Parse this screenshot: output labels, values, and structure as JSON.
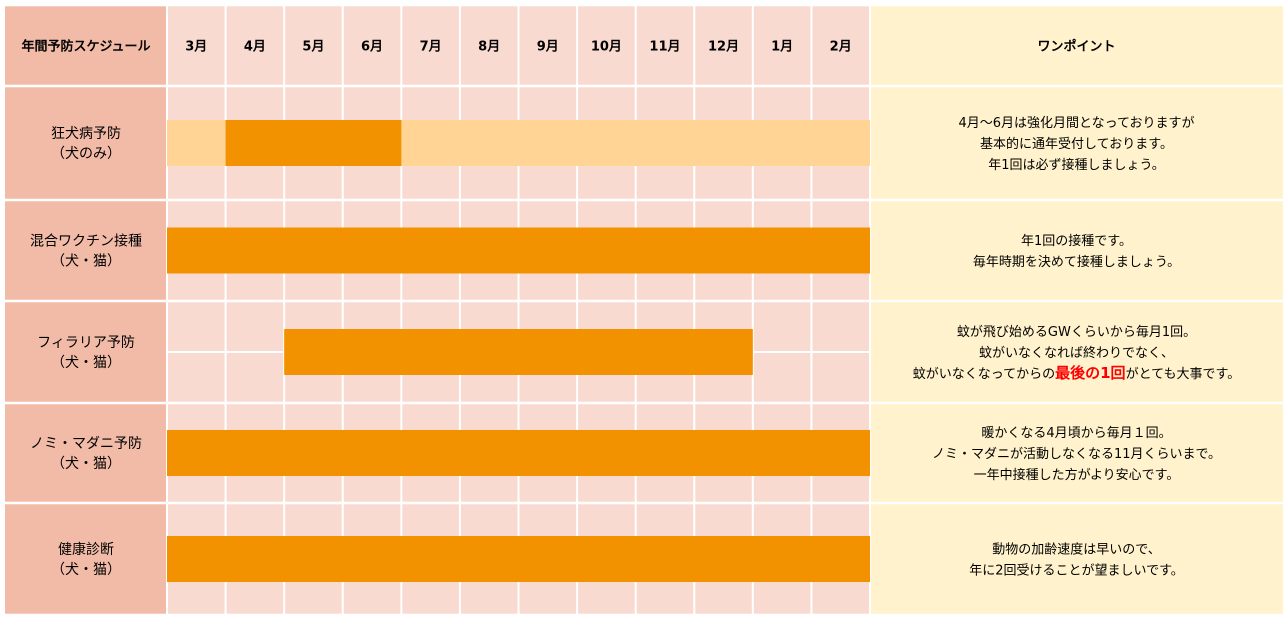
{
  "colors": {
    "label_bg": "#f2bba8",
    "grid_bg": "#f8dad0",
    "grid_line": "#ffffff",
    "note_bg": "#fff2cc",
    "bar_main": "#f39200",
    "bar_light": "#ffd495",
    "emphasis": "#ff0000"
  },
  "header": {
    "schedule_label": "年間予防スケジュール",
    "onepoint_label": "ワンポイント"
  },
  "chart_data": {
    "type": "gantt",
    "title": "年間予防スケジュール",
    "months": [
      "3月",
      "4月",
      "5月",
      "6月",
      "7月",
      "8月",
      "9月",
      "10月",
      "11月",
      "12月",
      "1月",
      "2月"
    ],
    "rows": [
      {
        "label": [
          "狂犬病予防",
          "（犬のみ）"
        ],
        "bars": [
          {
            "start_month": "3月",
            "end_month": "2月",
            "level": "light"
          },
          {
            "start_month": "4月",
            "end_month": "6月",
            "level": "main"
          }
        ],
        "note": [
          [
            {
              "text": "4月～6月は強化月間となっておりますが"
            }
          ],
          [
            {
              "text": "基本的に通年受付しております。"
            }
          ],
          [
            {
              "text": "年1回は必ず接種しましょう。"
            }
          ]
        ]
      },
      {
        "label": [
          "混合ワクチン接種",
          "（犬・猫）"
        ],
        "bars": [
          {
            "start_month": "3月",
            "end_month": "2月",
            "level": "main"
          }
        ],
        "note": [
          [
            {
              "text": "年1回の接種です。"
            }
          ],
          [
            {
              "text": "毎年時期を決めて接種しましょう。"
            }
          ]
        ]
      },
      {
        "label": [
          "フィラリア予防",
          "（犬・猫）"
        ],
        "bars": [
          {
            "start_month": "5月",
            "end_month": "12月",
            "level": "main"
          }
        ],
        "note": [
          [
            {
              "text": "蚊が飛び始めるGWくらいから毎月1回。"
            }
          ],
          [
            {
              "text": "蚊がいなくなれば終わりでなく、"
            }
          ],
          [
            {
              "text": "蚊がいなくなってからの"
            },
            {
              "text": "最後の1回",
              "emphasis": true
            },
            {
              "text": "がとても大事です。"
            }
          ]
        ]
      },
      {
        "label": [
          "ノミ・マダニ予防",
          "（犬・猫）"
        ],
        "bars": [
          {
            "start_month": "3月",
            "end_month": "2月",
            "level": "main"
          }
        ],
        "note": [
          [
            {
              "text": "暖かくなる4月頃から毎月１回。"
            }
          ],
          [
            {
              "text": "ノミ・マダニが活動しなくなる11月くらいまで。"
            }
          ],
          [
            {
              "text": "一年中接種した方がより安心です。"
            }
          ]
        ]
      },
      {
        "label": [
          "健康診断",
          "（犬・猫）"
        ],
        "bars": [
          {
            "start_month": "3月",
            "end_month": "2月",
            "level": "main"
          }
        ],
        "note": [
          [
            {
              "text": "動物の加齢速度は早いので、"
            }
          ],
          [
            {
              "text": "年に2回受けることが望ましいです。"
            }
          ]
        ]
      }
    ]
  }
}
